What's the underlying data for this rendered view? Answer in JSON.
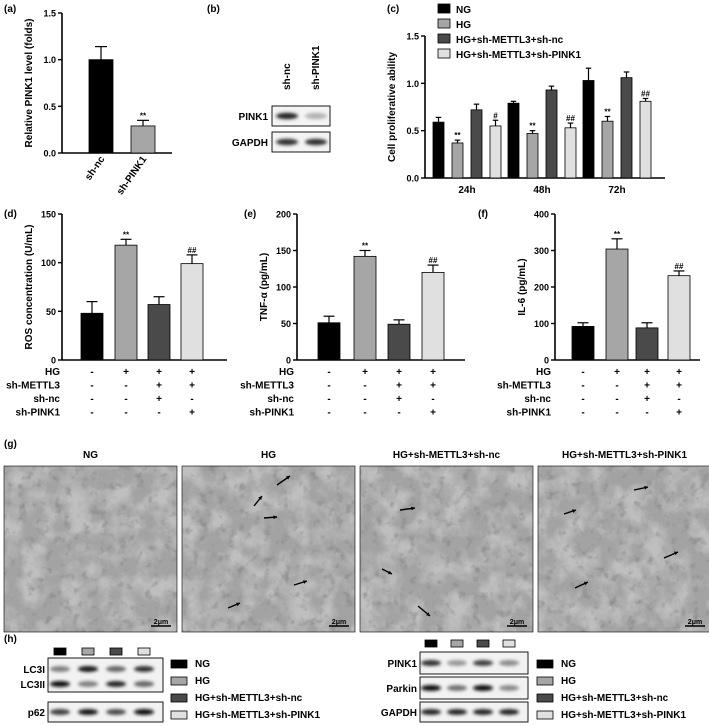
{
  "panel_labels": [
    "(a)",
    "(b)",
    "(c)",
    "(d)",
    "(e)",
    "(f)",
    "(g)",
    "(h)"
  ],
  "chart_data": [
    {
      "id": "a",
      "type": "bar",
      "categories": [
        "sh-nc",
        "sh-PINK1"
      ],
      "values": [
        1.0,
        0.29
      ],
      "errors": [
        0.14,
        0.06
      ],
      "significance": [
        "",
        "**"
      ],
      "colors": [
        "#000000",
        "#a6a6a6"
      ],
      "ylabel": "Relative PINK1 level (folds)",
      "ylim": [
        0,
        1.5
      ],
      "yticks": [
        "0.0",
        "0.5",
        "1.0",
        "1.5"
      ],
      "yticks_values": [
        0,
        0.5,
        1.0,
        1.5
      ]
    },
    {
      "id": "c",
      "type": "bar",
      "categories": [
        "24h",
        "48h",
        "72h"
      ],
      "series": [
        {
          "name": "NG",
          "color": "#000000",
          "values": [
            0.59,
            0.79,
            1.03
          ],
          "errors": [
            0.05,
            0.02,
            0.13
          ],
          "significance": [
            "",
            "",
            ""
          ]
        },
        {
          "name": "HG",
          "color": "#a6a6a6",
          "values": [
            0.37,
            0.47,
            0.6
          ],
          "errors": [
            0.03,
            0.03,
            0.05
          ],
          "significance": [
            "**",
            "**",
            "**"
          ]
        },
        {
          "name": "HG+sh-METTL3+sh-nc",
          "color": "#4a4a4a",
          "values": [
            0.72,
            0.93,
            1.06
          ],
          "errors": [
            0.06,
            0.04,
            0.06
          ],
          "significance": [
            "",
            "",
            ""
          ]
        },
        {
          "name": "HG+sh-METTL3+sh-PINK1",
          "color": "#e0e0e0",
          "values": [
            0.55,
            0.53,
            0.81
          ],
          "errors": [
            0.06,
            0.05,
            0.03
          ],
          "significance": [
            "#",
            "##",
            "##"
          ]
        }
      ],
      "ylabel": "Cell proliferative ability",
      "ylim": [
        0,
        1.5
      ],
      "yticks": [
        "0.0",
        "0.5",
        "1.0",
        "1.5"
      ],
      "yticks_values": [
        0,
        0.5,
        1.0,
        1.5
      ],
      "legend_placement": "top-right"
    },
    {
      "id": "d",
      "type": "bar",
      "values": [
        48,
        118,
        57,
        99
      ],
      "errors": [
        12,
        6,
        8,
        9
      ],
      "significance": [
        "",
        "**",
        "",
        "##"
      ],
      "ylabel": "ROS concentration (U/mL)",
      "ylim": [
        0,
        150
      ],
      "yticks": [
        "0",
        "50",
        "100",
        "150"
      ],
      "yticks_values": [
        0,
        50,
        100,
        150
      ]
    },
    {
      "id": "e",
      "type": "bar",
      "values": [
        51,
        142,
        49,
        120
      ],
      "errors": [
        9,
        8,
        6,
        10
      ],
      "significance": [
        "",
        "**",
        "",
        "##"
      ],
      "ylabel": "TNF-α (pg/mL)",
      "ylim": [
        0,
        200
      ],
      "yticks": [
        "0",
        "50",
        "100",
        "150",
        "200"
      ],
      "yticks_values": [
        0,
        50,
        100,
        150,
        200
      ]
    },
    {
      "id": "f",
      "type": "bar",
      "values": [
        92,
        304,
        88,
        231
      ],
      "errors": [
        10,
        28,
        14,
        13
      ],
      "significance": [
        "",
        "**",
        "",
        "##"
      ],
      "ylabel": "IL-6 (pg/mL)",
      "ylim": [
        0,
        400
      ],
      "yticks": [
        "0",
        "100",
        "200",
        "300",
        "400"
      ],
      "yticks_values": [
        0,
        100,
        200,
        300,
        400
      ]
    }
  ],
  "condition_table": {
    "rows": [
      {
        "label": "HG",
        "marks": [
          "-",
          "+",
          "+",
          "+"
        ]
      },
      {
        "label": "sh-METTL3",
        "marks": [
          "-",
          "-",
          "+",
          "+"
        ]
      },
      {
        "label": "sh-nc",
        "marks": [
          "-",
          "-",
          "+",
          "-"
        ]
      },
      {
        "label": "sh-PINK1",
        "marks": [
          "-",
          "-",
          "-",
          "+"
        ]
      }
    ],
    "colors": [
      "#000000",
      "#a6a6a6",
      "#4a4a4a",
      "#e0e0e0"
    ]
  },
  "panel_b": {
    "lane_labels": [
      "sh-nc",
      "sh-PINK1"
    ],
    "rows": [
      {
        "label": "PINK1",
        "intensity": [
          0.85,
          0.3
        ]
      },
      {
        "label": "GAPDH",
        "intensity": [
          0.8,
          0.8
        ]
      }
    ]
  },
  "panel_g": {
    "titles": [
      "NG",
      "HG",
      "HG+sh-METTL3+sh-nc",
      "HG+sh-METTL3+sh-PINK1"
    ],
    "scale_bar": "2μm"
  },
  "panel_h": {
    "left": {
      "rows": [
        {
          "label": "LC3I",
          "intensity": [
            0.5,
            0.9,
            0.6,
            0.8
          ]
        },
        {
          "label": "LC3II",
          "intensity": [
            0.95,
            0.5,
            0.85,
            0.6
          ]
        },
        {
          "label": "p62",
          "intensity": [
            0.75,
            0.9,
            0.7,
            0.95
          ]
        }
      ]
    },
    "right": {
      "rows": [
        {
          "label": "PINK1",
          "intensity": [
            0.8,
            0.4,
            0.75,
            0.45
          ]
        },
        {
          "label": "Parkin",
          "intensity": [
            0.95,
            0.55,
            0.95,
            0.45
          ]
        },
        {
          "label": "GAPDH",
          "intensity": [
            0.85,
            0.85,
            0.85,
            0.85
          ]
        }
      ]
    },
    "legend": [
      "NG",
      "HG",
      "HG+sh-METTL3+sh-nc",
      "HG+sh-METTL3+sh-PINK1"
    ],
    "legend_colors": [
      "#000000",
      "#a6a6a6",
      "#4a4a4a",
      "#e0e0e0"
    ]
  }
}
